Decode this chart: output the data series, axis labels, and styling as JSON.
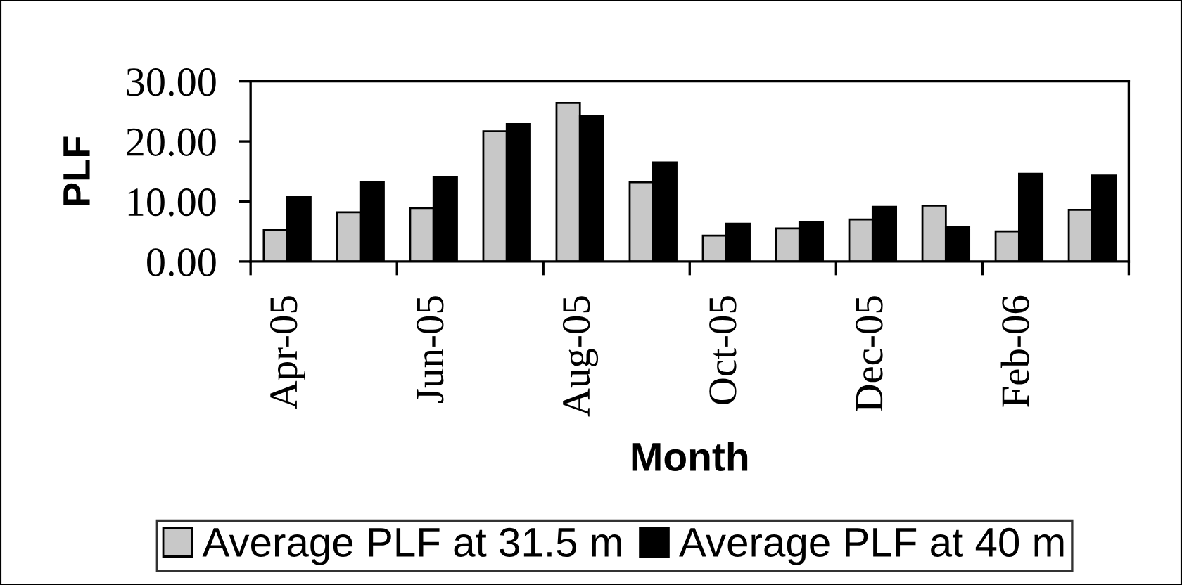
{
  "chart_data": {
    "type": "bar",
    "xlabel": "Month",
    "ylabel": "PLF",
    "categories": [
      "Apr-05",
      null,
      "Jun-05",
      null,
      "Aug-05",
      null,
      "Oct-05",
      null,
      "Dec-05",
      null,
      "Feb-06",
      null
    ],
    "series": [
      {
        "name": "Average PLF at 31.5 m",
        "color": "#c8c8c8",
        "values": [
          5.3,
          8.2,
          8.9,
          21.7,
          26.4,
          13.2,
          4.3,
          5.5,
          7.0,
          9.3,
          5.0,
          8.6
        ]
      },
      {
        "name": "Average PLF at 40 m",
        "color": "#000000",
        "values": [
          10.7,
          13.2,
          14.0,
          22.9,
          24.3,
          16.5,
          6.3,
          6.6,
          9.1,
          5.7,
          14.6,
          14.3
        ]
      }
    ],
    "ylim": [
      0,
      30
    ],
    "yticks": [
      {
        "value": 0,
        "label": "0.00"
      },
      {
        "value": 10,
        "label": "10.00"
      },
      {
        "value": 20,
        "label": "20.00"
      },
      {
        "value": 30,
        "label": "30.00"
      }
    ],
    "grid": false,
    "legend": "bottom"
  }
}
